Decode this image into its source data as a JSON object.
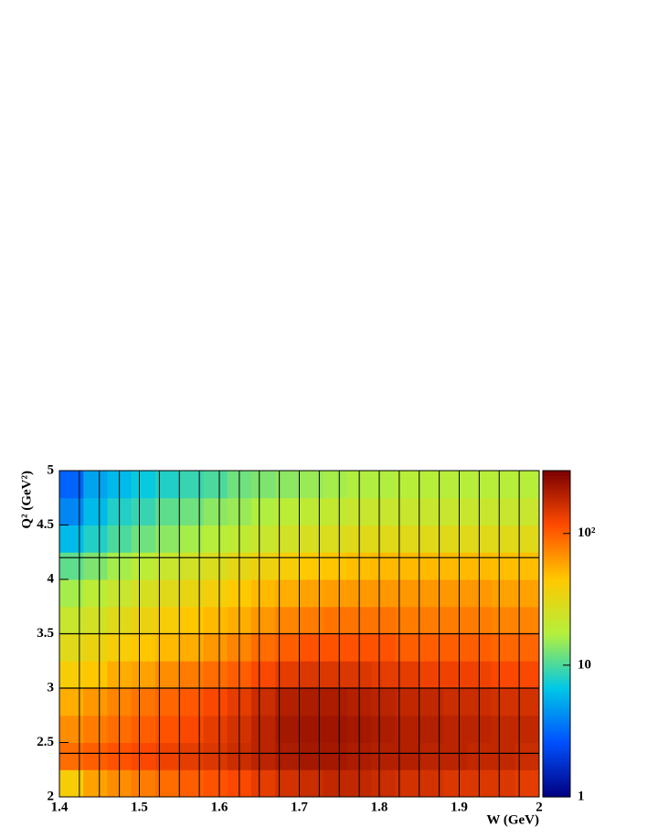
{
  "chart_data": {
    "type": "heatmap",
    "x_label": "W (GeV)",
    "y_label": "Q² (GeV²)",
    "xlim": [
      1.4,
      2
    ],
    "xticks": [
      1.4,
      1.5,
      1.6,
      1.7,
      1.8,
      1.9,
      2
    ],
    "ylim": [
      2,
      5
    ],
    "yticks": [
      2,
      2.5,
      3,
      3.5,
      4,
      4.5,
      5
    ],
    "zlim": [
      1,
      300
    ],
    "zlog": true,
    "zticks": [
      1,
      10,
      {
        "value": 100,
        "label": "10²"
      }
    ],
    "colormap": [
      "#000080",
      "#0050ff",
      "#00c8e6",
      "#b4f03c",
      "#ffc800",
      "#ff4b00",
      "#7a0000"
    ],
    "x_bins": [
      1.4,
      1.43,
      1.46,
      1.49,
      1.52,
      1.55,
      1.58,
      1.61,
      1.64,
      1.67,
      1.7,
      1.73,
      1.76,
      1.79,
      1.82,
      1.85,
      1.88,
      1.91,
      1.94,
      1.97,
      2.0
    ],
    "y_bins": [
      2,
      2.25,
      2.5,
      2.75,
      3,
      3.25,
      3.5,
      3.75,
      4,
      4.25,
      4.5,
      4.75,
      5
    ],
    "z": [
      [
        40,
        60,
        70,
        80,
        90,
        100,
        110,
        120,
        140,
        160,
        170,
        180,
        180,
        170,
        160,
        160,
        150,
        150,
        150,
        140
      ],
      [
        90,
        100,
        110,
        120,
        130,
        140,
        150,
        170,
        190,
        210,
        220,
        220,
        210,
        200,
        200,
        190,
        190,
        180,
        180,
        170
      ],
      [
        70,
        80,
        90,
        100,
        110,
        120,
        140,
        160,
        190,
        220,
        230,
        230,
        220,
        210,
        200,
        200,
        190,
        190,
        180,
        180
      ],
      [
        55,
        65,
        75,
        85,
        95,
        105,
        120,
        140,
        170,
        200,
        210,
        210,
        200,
        190,
        180,
        180,
        170,
        170,
        160,
        160
      ],
      [
        40,
        45,
        55,
        60,
        70,
        80,
        90,
        100,
        120,
        140,
        150,
        150,
        150,
        140,
        140,
        130,
        130,
        130,
        120,
        120
      ],
      [
        30,
        35,
        40,
        45,
        50,
        55,
        65,
        75,
        90,
        100,
        110,
        110,
        110,
        110,
        100,
        100,
        100,
        100,
        95,
        95
      ],
      [
        22,
        25,
        30,
        35,
        40,
        45,
        50,
        55,
        65,
        75,
        80,
        85,
        85,
        85,
        80,
        80,
        80,
        80,
        75,
        75
      ],
      [
        16,
        19,
        22,
        26,
        30,
        34,
        38,
        44,
        50,
        55,
        60,
        62,
        64,
        65,
        65,
        65,
        65,
        65,
        60,
        60
      ],
      [
        11,
        13,
        16,
        19,
        22,
        25,
        28,
        32,
        36,
        40,
        44,
        46,
        48,
        50,
        50,
        50,
        50,
        50,
        48,
        48
      ],
      [
        6,
        8,
        10,
        12,
        14,
        16,
        18,
        20,
        22,
        25,
        27,
        28,
        30,
        30,
        30,
        30,
        30,
        30,
        30,
        30
      ],
      [
        4,
        6,
        8,
        9,
        11,
        12,
        14,
        15,
        17,
        19,
        20,
        21,
        22,
        22,
        22,
        22,
        22,
        22,
        22,
        22
      ],
      [
        3,
        5,
        6,
        7,
        8,
        9,
        10,
        12,
        13,
        14,
        15,
        16,
        17,
        17,
        18,
        18,
        18,
        18,
        18,
        18
      ]
    ],
    "vlines": [
      1.425,
      1.45,
      1.475,
      1.5,
      1.525,
      1.55,
      1.575,
      1.6,
      1.625,
      1.65,
      1.675,
      1.7,
      1.725,
      1.75,
      1.775,
      1.8,
      1.825,
      1.85,
      1.875,
      1.9,
      1.925,
      1.95,
      1.975
    ],
    "hlines": [
      2.4,
      3.0,
      3.5,
      4.2
    ]
  }
}
